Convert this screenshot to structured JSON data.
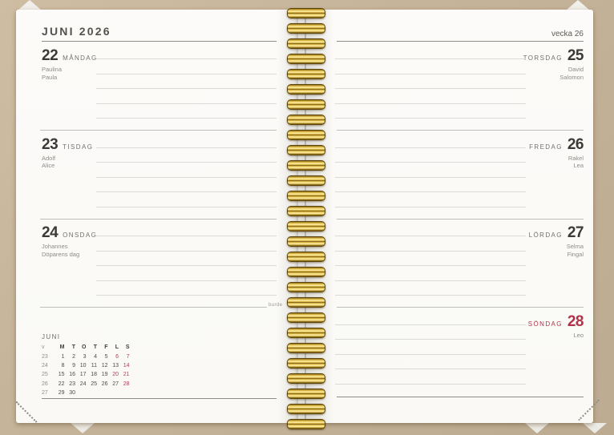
{
  "planner": {
    "left_page": {
      "month_title": "JUNI 2026",
      "brand": "burde",
      "days": [
        {
          "date": "22",
          "weekday": "MÅNDAG",
          "name_days": [
            "Paulina",
            "Paula"
          ]
        },
        {
          "date": "23",
          "weekday": "TISDAG",
          "name_days": [
            "Adolf",
            "Alice"
          ]
        },
        {
          "date": "24",
          "weekday": "ONSDAG",
          "name_days": [
            "Johannes",
            "Döparens dag"
          ]
        }
      ],
      "mini_calendar": {
        "title": "JUNI",
        "headers": [
          "v",
          "M",
          "T",
          "O",
          "T",
          "F",
          "L",
          "S"
        ],
        "weeks": [
          {
            "week": "23",
            "days": [
              {
                "t": "1"
              },
              {
                "t": "2"
              },
              {
                "t": "3"
              },
              {
                "t": "4"
              },
              {
                "t": "5"
              },
              {
                "t": "6",
                "red": true
              },
              {
                "t": "7",
                "red": true
              }
            ]
          },
          {
            "week": "24",
            "days": [
              {
                "t": "8"
              },
              {
                "t": "9"
              },
              {
                "t": "10"
              },
              {
                "t": "11"
              },
              {
                "t": "12"
              },
              {
                "t": "13"
              },
              {
                "t": "14",
                "red": true
              }
            ]
          },
          {
            "week": "25",
            "days": [
              {
                "t": "15"
              },
              {
                "t": "16"
              },
              {
                "t": "17"
              },
              {
                "t": "18"
              },
              {
                "t": "19"
              },
              {
                "t": "20",
                "red": true
              },
              {
                "t": "21",
                "red": true
              }
            ]
          },
          {
            "week": "26",
            "days": [
              {
                "t": "22"
              },
              {
                "t": "23"
              },
              {
                "t": "24"
              },
              {
                "t": "25"
              },
              {
                "t": "26"
              },
              {
                "t": "27"
              },
              {
                "t": "28",
                "red": true
              }
            ]
          },
          {
            "week": "27",
            "days": [
              {
                "t": "29"
              },
              {
                "t": "30"
              }
            ]
          }
        ]
      }
    },
    "right_page": {
      "week_label": "vecka 26",
      "days": [
        {
          "date": "25",
          "weekday": "TORSDAG",
          "name_days": [
            "David",
            "Salomon"
          ],
          "red": false
        },
        {
          "date": "26",
          "weekday": "FREDAG",
          "name_days": [
            "Rakel",
            "Lea"
          ],
          "red": false
        },
        {
          "date": "27",
          "weekday": "LÖRDAG",
          "name_days": [
            "Selma",
            "Fingal"
          ],
          "red": false
        },
        {
          "date": "28",
          "weekday": "SÖNDAG",
          "name_days": [
            "Leo"
          ],
          "red": true
        }
      ]
    },
    "colors": {
      "red_day": "#b23249",
      "mini_red": "#ad4157",
      "gold_binding": "#d4a93c",
      "kraft_background": "#c6b49a",
      "paper": "#fbfaf7"
    }
  }
}
